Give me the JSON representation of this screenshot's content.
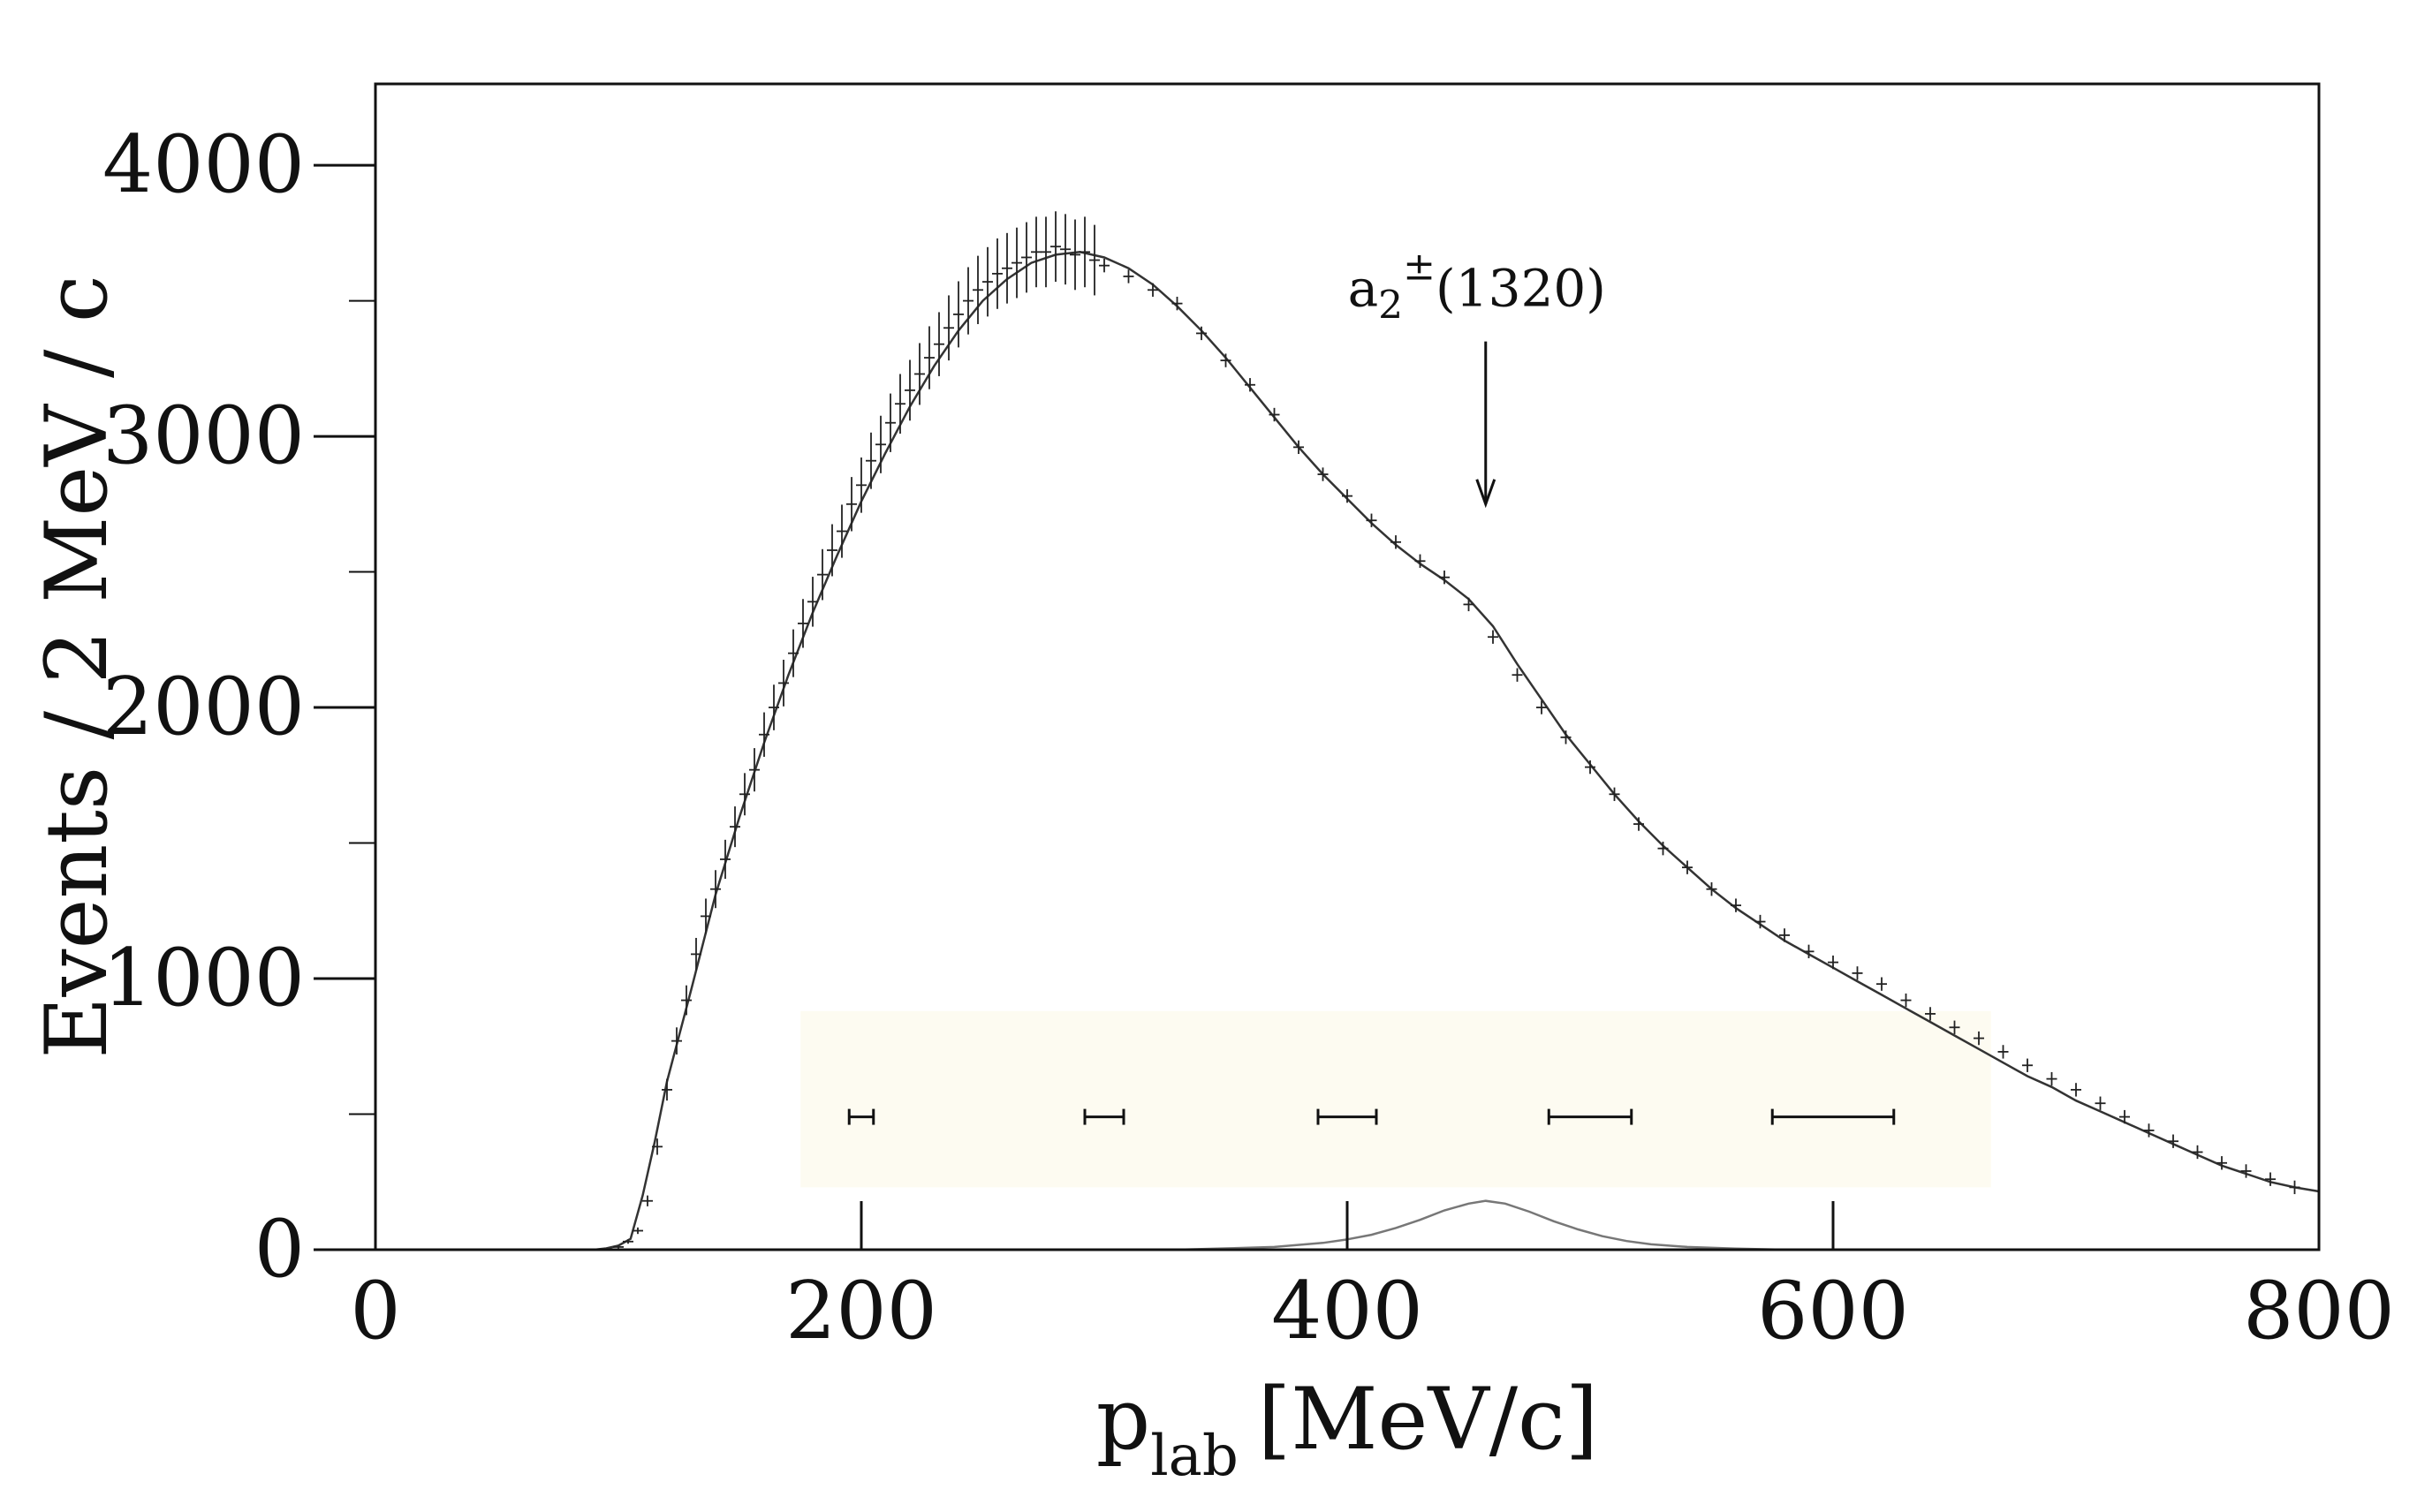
{
  "chart_data": {
    "type": "line",
    "title": "",
    "xlabel": {
      "main": "p",
      "sub": "lab",
      "unit": "[MeV/c]"
    },
    "ylabel": "Events / 2 MeV / c",
    "xlim": [
      0,
      800
    ],
    "ylim": [
      0,
      4300
    ],
    "xticks": [
      0,
      200,
      400,
      600,
      800
    ],
    "yticks": [
      0,
      1000,
      2000,
      3000,
      4000
    ],
    "grid": false,
    "legend": "none",
    "colors": {
      "data": "#222222",
      "fit": "#333333",
      "signal": "#777777",
      "axis": "#111111",
      "shade": "#fdfbf1"
    },
    "annotation": {
      "base": "a",
      "sub": "2",
      "sup": "±",
      "rest": "(1320)",
      "x": 457,
      "y_arrow_tip": 2750,
      "y_arrow_top": 3350
    },
    "series": [
      {
        "name": "",
        "kind": "data",
        "x": [
          100,
          104,
          108,
          112,
          116,
          120,
          124,
          128,
          132,
          136,
          140,
          144,
          148,
          152,
          156,
          160,
          164,
          168,
          172,
          176,
          180,
          184,
          188,
          192,
          196,
          200,
          204,
          208,
          212,
          216,
          220,
          224,
          228,
          232,
          236,
          240,
          244,
          248,
          252,
          256,
          260,
          264,
          268,
          272,
          276,
          280,
          284,
          288,
          292,
          296,
          300,
          310,
          320,
          330,
          340,
          350,
          360,
          370,
          380,
          390,
          400,
          410,
          420,
          430,
          440,
          450,
          460,
          470,
          480,
          490,
          500,
          510,
          520,
          530,
          540,
          550,
          560,
          570,
          580,
          590,
          600,
          610,
          620,
          630,
          640,
          650,
          660,
          670,
          680,
          690,
          700,
          710,
          720,
          730,
          740,
          750,
          760,
          770,
          780,
          790
        ],
        "y": [
          10,
          30,
          70,
          180,
          380,
          590,
          770,
          920,
          1090,
          1230,
          1330,
          1440,
          1560,
          1680,
          1770,
          1900,
          2000,
          2090,
          2200,
          2310,
          2390,
          2490,
          2580,
          2650,
          2750,
          2820,
          2910,
          2970,
          3050,
          3120,
          3170,
          3230,
          3290,
          3340,
          3400,
          3450,
          3500,
          3540,
          3570,
          3600,
          3620,
          3640,
          3660,
          3680,
          3680,
          3700,
          3690,
          3670,
          3680,
          3650,
          3630,
          3590,
          3540,
          3490,
          3380,
          3280,
          3190,
          3080,
          2960,
          2860,
          2780,
          2690,
          2610,
          2540,
          2480,
          2380,
          2260,
          2120,
          2000,
          1890,
          1780,
          1680,
          1570,
          1480,
          1410,
          1330,
          1270,
          1210,
          1160,
          1100,
          1060,
          1020,
          980,
          920,
          870,
          820,
          780,
          730,
          680,
          630,
          590,
          540,
          490,
          440,
          400,
          360,
          320,
          290,
          260,
          230
        ],
        "yerr": [
          5,
          8,
          12,
          20,
          30,
          40,
          50,
          55,
          60,
          65,
          70,
          72,
          75,
          78,
          80,
          82,
          84,
          86,
          88,
          90,
          92,
          94,
          96,
          98,
          100,
          102,
          104,
          106,
          108,
          110,
          112,
          114,
          116,
          118,
          120,
          122,
          124,
          126,
          128,
          130,
          130,
          130,
          130,
          130,
          130,
          130,
          130,
          130,
          130,
          130,
          25,
          25,
          25,
          25,
          25,
          25,
          25,
          25,
          25,
          25,
          25,
          25,
          25,
          25,
          25,
          25,
          25,
          25,
          25,
          25,
          25,
          25,
          25,
          25,
          25,
          25,
          25,
          25,
          25,
          25,
          25,
          25,
          25,
          25,
          25,
          25,
          25,
          25,
          25,
          25,
          25,
          25,
          25,
          25,
          25,
          25,
          25,
          25,
          25,
          25
        ]
      },
      {
        "name": "",
        "kind": "fit",
        "x": [
          90,
          95,
          100,
          105,
          110,
          115,
          120,
          130,
          140,
          150,
          160,
          170,
          180,
          190,
          200,
          210,
          220,
          230,
          240,
          250,
          260,
          270,
          280,
          290,
          300,
          310,
          320,
          330,
          340,
          350,
          360,
          370,
          380,
          390,
          400,
          410,
          420,
          430,
          440,
          450,
          460,
          470,
          480,
          490,
          500,
          510,
          520,
          530,
          540,
          550,
          560,
          570,
          580,
          590,
          600,
          610,
          620,
          630,
          640,
          650,
          660,
          670,
          680,
          690,
          700,
          710,
          720,
          730,
          740,
          750,
          760,
          770,
          780,
          790,
          800
        ],
        "y": [
          0,
          5,
          15,
          40,
          200,
          400,
          620,
          960,
          1310,
          1600,
          1870,
          2120,
          2350,
          2560,
          2760,
          2940,
          3110,
          3260,
          3390,
          3500,
          3580,
          3640,
          3670,
          3680,
          3660,
          3620,
          3560,
          3480,
          3390,
          3290,
          3180,
          3070,
          2960,
          2860,
          2770,
          2680,
          2600,
          2530,
          2470,
          2400,
          2300,
          2160,
          2030,
          1900,
          1790,
          1680,
          1580,
          1490,
          1410,
          1330,
          1260,
          1200,
          1140,
          1090,
          1040,
          990,
          940,
          890,
          840,
          790,
          740,
          690,
          640,
          600,
          550,
          510,
          470,
          430,
          390,
          350,
          310,
          280,
          250,
          230,
          215
        ]
      },
      {
        "name": "",
        "kind": "signal",
        "x": [
          330,
          350,
          370,
          390,
          400,
          410,
          420,
          430,
          440,
          450,
          457,
          465,
          475,
          485,
          495,
          505,
          515,
          525,
          540,
          560,
          580
        ],
        "y": [
          0,
          5,
          10,
          25,
          38,
          55,
          80,
          110,
          145,
          170,
          180,
          170,
          140,
          105,
          75,
          50,
          32,
          20,
          10,
          4,
          0
        ]
      }
    ],
    "resolution_bars": [
      {
        "x": 200,
        "half_width": 5
      },
      {
        "x": 300,
        "half_width": 8
      },
      {
        "x": 400,
        "half_width": 12
      },
      {
        "x": 500,
        "half_width": 17
      },
      {
        "x": 600,
        "half_width": 25
      }
    ],
    "resolution_bar_y": 490,
    "shade_range": {
      "x": [
        175,
        665
      ],
      "y": [
        230,
        880
      ]
    }
  }
}
